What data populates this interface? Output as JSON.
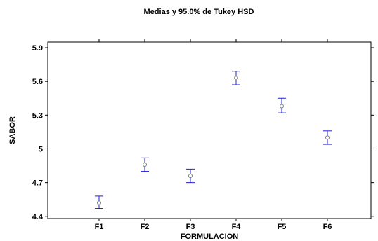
{
  "chart_data": {
    "type": "scatter",
    "title": "Medias y 95.0% de Tukey HSD",
    "xlabel": "FORMULACION",
    "ylabel": "SABOR",
    "categories": [
      "F1",
      "F2",
      "F3",
      "F4",
      "F5",
      "F6"
    ],
    "means": [
      4.52,
      4.86,
      4.76,
      5.63,
      5.38,
      5.1
    ],
    "lower": [
      4.47,
      4.8,
      4.7,
      5.57,
      5.32,
      5.04
    ],
    "upper": [
      4.58,
      4.92,
      4.82,
      5.69,
      5.45,
      5.16
    ],
    "yticks": [
      4.4,
      4.7,
      5,
      5.3,
      5.6,
      5.9
    ],
    "ytick_labels": [
      "4.4",
      "4.7",
      "5",
      "5.3",
      "5.6",
      "5.9"
    ],
    "ylim": [
      4.38,
      5.95
    ],
    "grid": false,
    "colors": {
      "errorbar": "#1f1fd6",
      "marker": "#7a7a7a",
      "axis": "#000000"
    }
  }
}
